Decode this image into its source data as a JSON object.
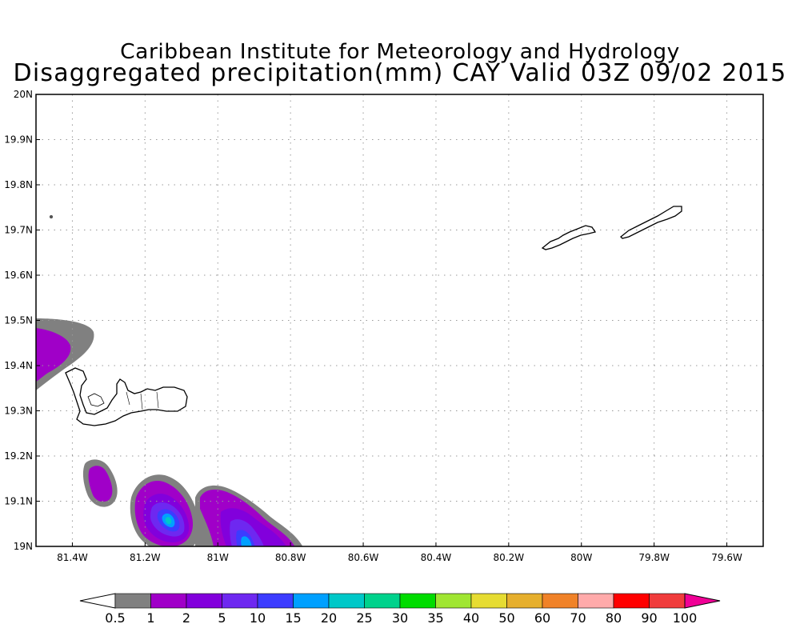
{
  "title": {
    "line1": "Caribbean Institute for Meteorology and Hydrology",
    "line2": "Disaggregated precipitation(mm) CAY Valid 03Z 09/02 2015"
  },
  "map": {
    "lon_range": [
      -81.5,
      -79.5
    ],
    "lat_range": [
      19.0,
      20.0
    ],
    "lon_ticks": [
      {
        "value": -81.4,
        "label": "81.4W"
      },
      {
        "value": -81.2,
        "label": "81.2W"
      },
      {
        "value": -81.0,
        "label": "81W"
      },
      {
        "value": -80.8,
        "label": "80.8W"
      },
      {
        "value": -80.6,
        "label": "80.6W"
      },
      {
        "value": -80.4,
        "label": "80.4W"
      },
      {
        "value": -80.2,
        "label": "80.2W"
      },
      {
        "value": -80.0,
        "label": "80W"
      },
      {
        "value": -79.8,
        "label": "79.8W"
      },
      {
        "value": -79.6,
        "label": "79.6W"
      }
    ],
    "lat_ticks": [
      {
        "value": 19.0,
        "label": "19N"
      },
      {
        "value": 19.1,
        "label": "19.1N"
      },
      {
        "value": 19.2,
        "label": "19.2N"
      },
      {
        "value": 19.3,
        "label": "19.3N"
      },
      {
        "value": 19.4,
        "label": "19.4N"
      },
      {
        "value": 19.5,
        "label": "19.5N"
      },
      {
        "value": 19.6,
        "label": "19.6N"
      },
      {
        "value": 19.7,
        "label": "19.7N"
      },
      {
        "value": 19.8,
        "label": "19.8N"
      },
      {
        "value": 19.9,
        "label": "19.9N"
      },
      {
        "value": 20.0,
        "label": "20N"
      }
    ],
    "grid": "dotted"
  },
  "colorbar": {
    "labels": [
      "0.5",
      "1",
      "2",
      "5",
      "10",
      "15",
      "20",
      "25",
      "30",
      "35",
      "40",
      "50",
      "60",
      "70",
      "80",
      "90",
      "100"
    ],
    "colors": [
      "#ffffff",
      "#808080",
      "#a000c8",
      "#8200dc",
      "#6e28f0",
      "#3c3cff",
      "#00a0ff",
      "#00c8c8",
      "#00d28c",
      "#00dc00",
      "#a0e632",
      "#e6dc32",
      "#e6af2d",
      "#f08228",
      "#ffaaaa",
      "#ff0000",
      "#f03c3c",
      "#f00096"
    ]
  }
}
